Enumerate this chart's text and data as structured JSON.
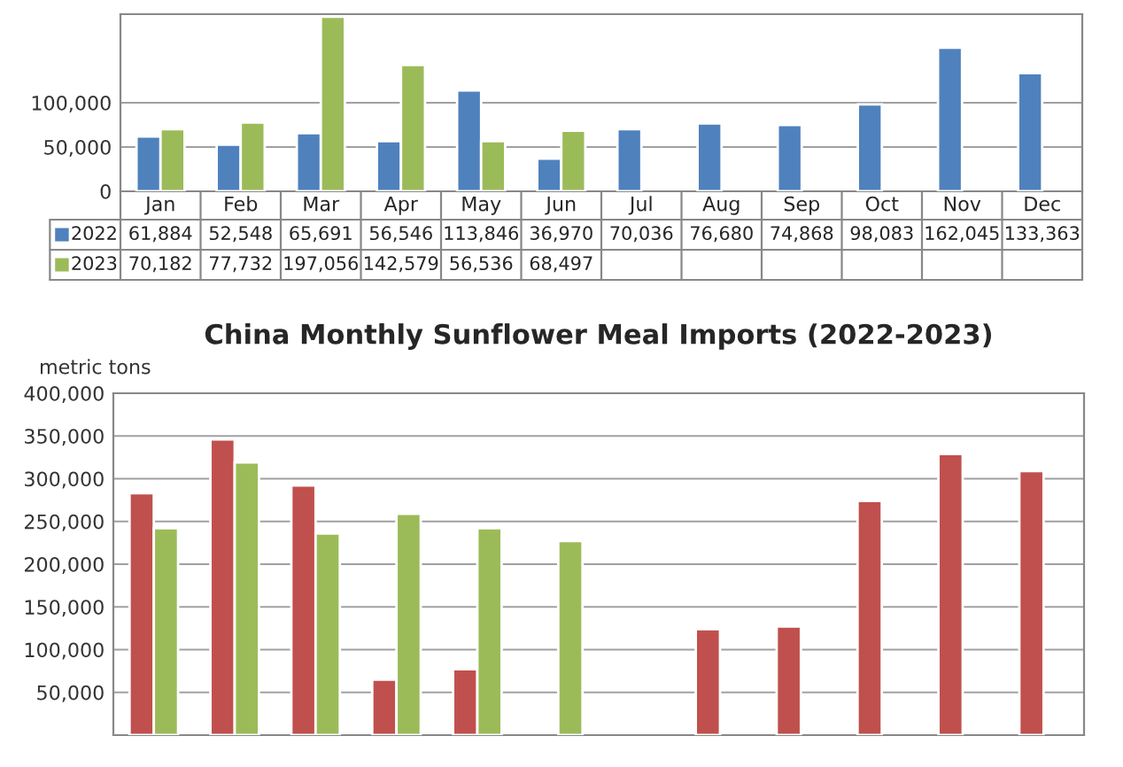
{
  "chart_data": [
    {
      "type": "bar",
      "categories": [
        "Jan",
        "Feb",
        "Mar",
        "Apr",
        "May",
        "Jun",
        "Jul",
        "Aug",
        "Sep",
        "Oct",
        "Nov",
        "Dec"
      ],
      "series": [
        {
          "name": "2022",
          "color": "#4f81bd",
          "values": [
            61884,
            52548,
            65691,
            56546,
            113846,
            36970,
            70036,
            76680,
            74868,
            98083,
            162045,
            133363
          ],
          "value_labels": [
            "61,884",
            "52,548",
            "65,691",
            "56,546",
            "113,846",
            "36,970",
            "70,036",
            "76,680",
            "74,868",
            "98,083",
            "162,045",
            "133,363"
          ]
        },
        {
          "name": "2023",
          "color": "#9bbb59",
          "values": [
            70182,
            77732,
            197056,
            142579,
            56536,
            68497,
            null,
            null,
            null,
            null,
            null,
            null
          ],
          "value_labels": [
            "70,182",
            "77,732",
            "197,056",
            "142,579",
            "56,536",
            "68,497",
            null,
            null,
            null,
            null,
            null,
            null
          ]
        }
      ],
      "ylim": [
        0,
        200000
      ],
      "yticks": [
        {
          "value": 0,
          "label": "0"
        },
        {
          "value": 50000,
          "label": "50,000"
        },
        {
          "value": 100000,
          "label": "100,000"
        }
      ],
      "grid": "y",
      "legend": "bottom"
    },
    {
      "type": "bar",
      "title": "China Monthly Sunflower Meal Imports (2022-2023)",
      "ylabel": "metric tons",
      "categories": [
        null,
        null,
        null,
        null,
        null,
        null,
        null,
        null,
        null,
        null,
        null,
        null
      ],
      "series": [
        {
          "color": "#c0504d",
          "values": [
            283000,
            346000,
            292000,
            65000,
            77000,
            null,
            null,
            124000,
            127000,
            274000,
            329000,
            309000
          ]
        },
        {
          "color": "#9bbb59",
          "values": [
            242000,
            319000,
            236000,
            259000,
            242000,
            227000,
            null,
            null,
            null,
            null,
            null,
            null
          ]
        }
      ],
      "ylim": [
        0,
        400000
      ],
      "yticks": [
        {
          "value": 50000,
          "label": "50,000"
        },
        {
          "value": 100000,
          "label": "100,000"
        },
        {
          "value": 150000,
          "label": "150,000"
        },
        {
          "value": 200000,
          "label": "200,000"
        },
        {
          "value": 250000,
          "label": "250,000"
        },
        {
          "value": 300000,
          "label": "300,000"
        },
        {
          "value": 350000,
          "label": "350,000"
        },
        {
          "value": 400000,
          "label": "400,000"
        }
      ],
      "grid": "y",
      "tick_labels": "y"
    }
  ]
}
